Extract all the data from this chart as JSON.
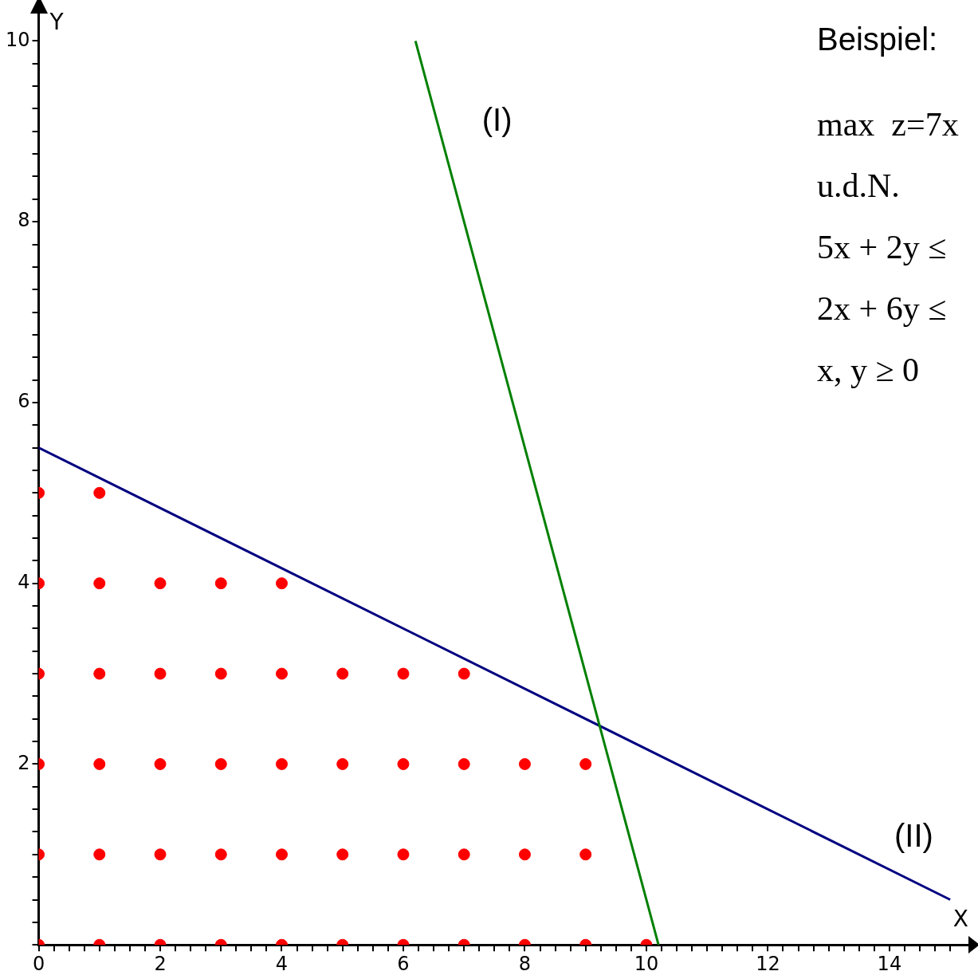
{
  "chart_data": {
    "type": "scatter",
    "xlabel": "X",
    "ylabel": "Y",
    "annotations": [
      "Beispiel:",
      "max  z=7x",
      "u.d.N.",
      "5x + 2y ≤",
      "2x + 6y ≤",
      "x, y ≥ 0"
    ],
    "xlim": [
      0,
      15.3
    ],
    "ylim": [
      0,
      10.3
    ],
    "xticks": [
      {
        "value": 0,
        "label": "0"
      },
      {
        "value": 0.25,
        "label": null
      },
      {
        "value": 0.5,
        "label": null
      },
      {
        "value": 0.75,
        "label": null
      },
      {
        "value": 1,
        "label": null
      },
      {
        "value": 1.25,
        "label": null
      },
      {
        "value": 1.5,
        "label": null
      },
      {
        "value": 1.75,
        "label": null
      },
      {
        "value": 2,
        "label": "2"
      },
      {
        "value": 2.25,
        "label": null
      },
      {
        "value": 2.5,
        "label": null
      },
      {
        "value": 2.75,
        "label": null
      },
      {
        "value": 3,
        "label": null
      },
      {
        "value": 3.25,
        "label": null
      },
      {
        "value": 3.5,
        "label": null
      },
      {
        "value": 3.75,
        "label": null
      },
      {
        "value": 4,
        "label": "4"
      },
      {
        "value": 4.25,
        "label": null
      },
      {
        "value": 4.5,
        "label": null
      },
      {
        "value": 4.75,
        "label": null
      },
      {
        "value": 5,
        "label": null
      },
      {
        "value": 5.25,
        "label": null
      },
      {
        "value": 5.5,
        "label": null
      },
      {
        "value": 5.75,
        "label": null
      },
      {
        "value": 6,
        "label": "6"
      },
      {
        "value": 6.25,
        "label": null
      },
      {
        "value": 6.5,
        "label": null
      },
      {
        "value": 6.75,
        "label": null
      },
      {
        "value": 7,
        "label": null
      },
      {
        "value": 7.25,
        "label": null
      },
      {
        "value": 7.5,
        "label": null
      },
      {
        "value": 7.75,
        "label": null
      },
      {
        "value": 8,
        "label": "8"
      },
      {
        "value": 8.25,
        "label": null
      },
      {
        "value": 8.5,
        "label": null
      },
      {
        "value": 8.75,
        "label": null
      },
      {
        "value": 9,
        "label": null
      },
      {
        "value": 9.25,
        "label": null
      },
      {
        "value": 9.5,
        "label": null
      },
      {
        "value": 9.75,
        "label": null
      },
      {
        "value": 10,
        "label": "10"
      },
      {
        "value": 10.25,
        "label": null
      },
      {
        "value": 10.5,
        "label": null
      },
      {
        "value": 10.75,
        "label": null
      },
      {
        "value": 11,
        "label": null
      },
      {
        "value": 11.25,
        "label": null
      },
      {
        "value": 11.5,
        "label": null
      },
      {
        "value": 11.75,
        "label": null
      },
      {
        "value": 12,
        "label": "12"
      },
      {
        "value": 12.25,
        "label": null
      },
      {
        "value": 12.5,
        "label": null
      },
      {
        "value": 12.75,
        "label": null
      },
      {
        "value": 13,
        "label": null
      },
      {
        "value": 13.25,
        "label": null
      },
      {
        "value": 13.5,
        "label": null
      },
      {
        "value": 13.75,
        "label": null
      },
      {
        "value": 14,
        "label": "14"
      },
      {
        "value": 14.25,
        "label": null
      },
      {
        "value": 14.5,
        "label": null
      },
      {
        "value": 14.75,
        "label": null
      },
      {
        "value": 15,
        "label": null
      }
    ],
    "yticks": [
      {
        "value": 0,
        "label": null
      },
      {
        "value": 0.25,
        "label": null
      },
      {
        "value": 0.5,
        "label": null
      },
      {
        "value": 0.75,
        "label": null
      },
      {
        "value": 1,
        "label": null
      },
      {
        "value": 1.25,
        "label": null
      },
      {
        "value": 1.5,
        "label": null
      },
      {
        "value": 1.75,
        "label": null
      },
      {
        "value": 2,
        "label": "2"
      },
      {
        "value": 2.25,
        "label": null
      },
      {
        "value": 2.5,
        "label": null
      },
      {
        "value": 2.75,
        "label": null
      },
      {
        "value": 3,
        "label": null
      },
      {
        "value": 3.25,
        "label": null
      },
      {
        "value": 3.5,
        "label": null
      },
      {
        "value": 3.75,
        "label": null
      },
      {
        "value": 4,
        "label": "4"
      },
      {
        "value": 4.25,
        "label": null
      },
      {
        "value": 4.5,
        "label": null
      },
      {
        "value": 4.75,
        "label": null
      },
      {
        "value": 5,
        "label": null
      },
      {
        "value": 5.25,
        "label": null
      },
      {
        "value": 5.5,
        "label": null
      },
      {
        "value": 5.75,
        "label": null
      },
      {
        "value": 6,
        "label": "6"
      },
      {
        "value": 6.25,
        "label": null
      },
      {
        "value": 6.5,
        "label": null
      },
      {
        "value": 6.75,
        "label": null
      },
      {
        "value": 7,
        "label": null
      },
      {
        "value": 7.25,
        "label": null
      },
      {
        "value": 7.5,
        "label": null
      },
      {
        "value": 7.75,
        "label": null
      },
      {
        "value": 8,
        "label": "8"
      },
      {
        "value": 8.25,
        "label": null
      },
      {
        "value": 8.5,
        "label": null
      },
      {
        "value": 8.75,
        "label": null
      },
      {
        "value": 9,
        "label": null
      },
      {
        "value": 9.25,
        "label": null
      },
      {
        "value": 9.5,
        "label": null
      },
      {
        "value": 9.75,
        "label": null
      },
      {
        "value": 10,
        "label": "10"
      }
    ],
    "grid": false,
    "legend": false,
    "marker": "circle",
    "series": [
      {
        "color": "#ff0000",
        "x": [
          0,
          1,
          2,
          3,
          4,
          5,
          6,
          7,
          8,
          9,
          10,
          0,
          1,
          2,
          3,
          4,
          5,
          6,
          7,
          8,
          9,
          0,
          1,
          2,
          3,
          4,
          5,
          6,
          7,
          8,
          9,
          0,
          1,
          2,
          3,
          4,
          5,
          6,
          7,
          0,
          1,
          2,
          3,
          4,
          0,
          1
        ],
        "values": [
          0,
          0,
          0,
          0,
          0,
          0,
          0,
          0,
          0,
          0,
          0,
          1,
          1,
          1,
          1,
          1,
          1,
          1,
          1,
          1,
          1,
          2,
          2,
          2,
          2,
          2,
          2,
          2,
          2,
          2,
          2,
          3,
          3,
          3,
          3,
          3,
          3,
          3,
          3,
          4,
          4,
          4,
          4,
          4,
          5,
          5
        ]
      },
      {
        "type": "line",
        "name": "(I)",
        "color": "#008000",
        "marker": "none",
        "x": [
          6.2,
          10.2
        ],
        "values": [
          10,
          0
        ]
      },
      {
        "type": "line",
        "name": "(II)",
        "color": "#000080",
        "marker": "none",
        "x": [
          0,
          15
        ],
        "values": [
          5.5,
          0.5
        ]
      }
    ]
  }
}
